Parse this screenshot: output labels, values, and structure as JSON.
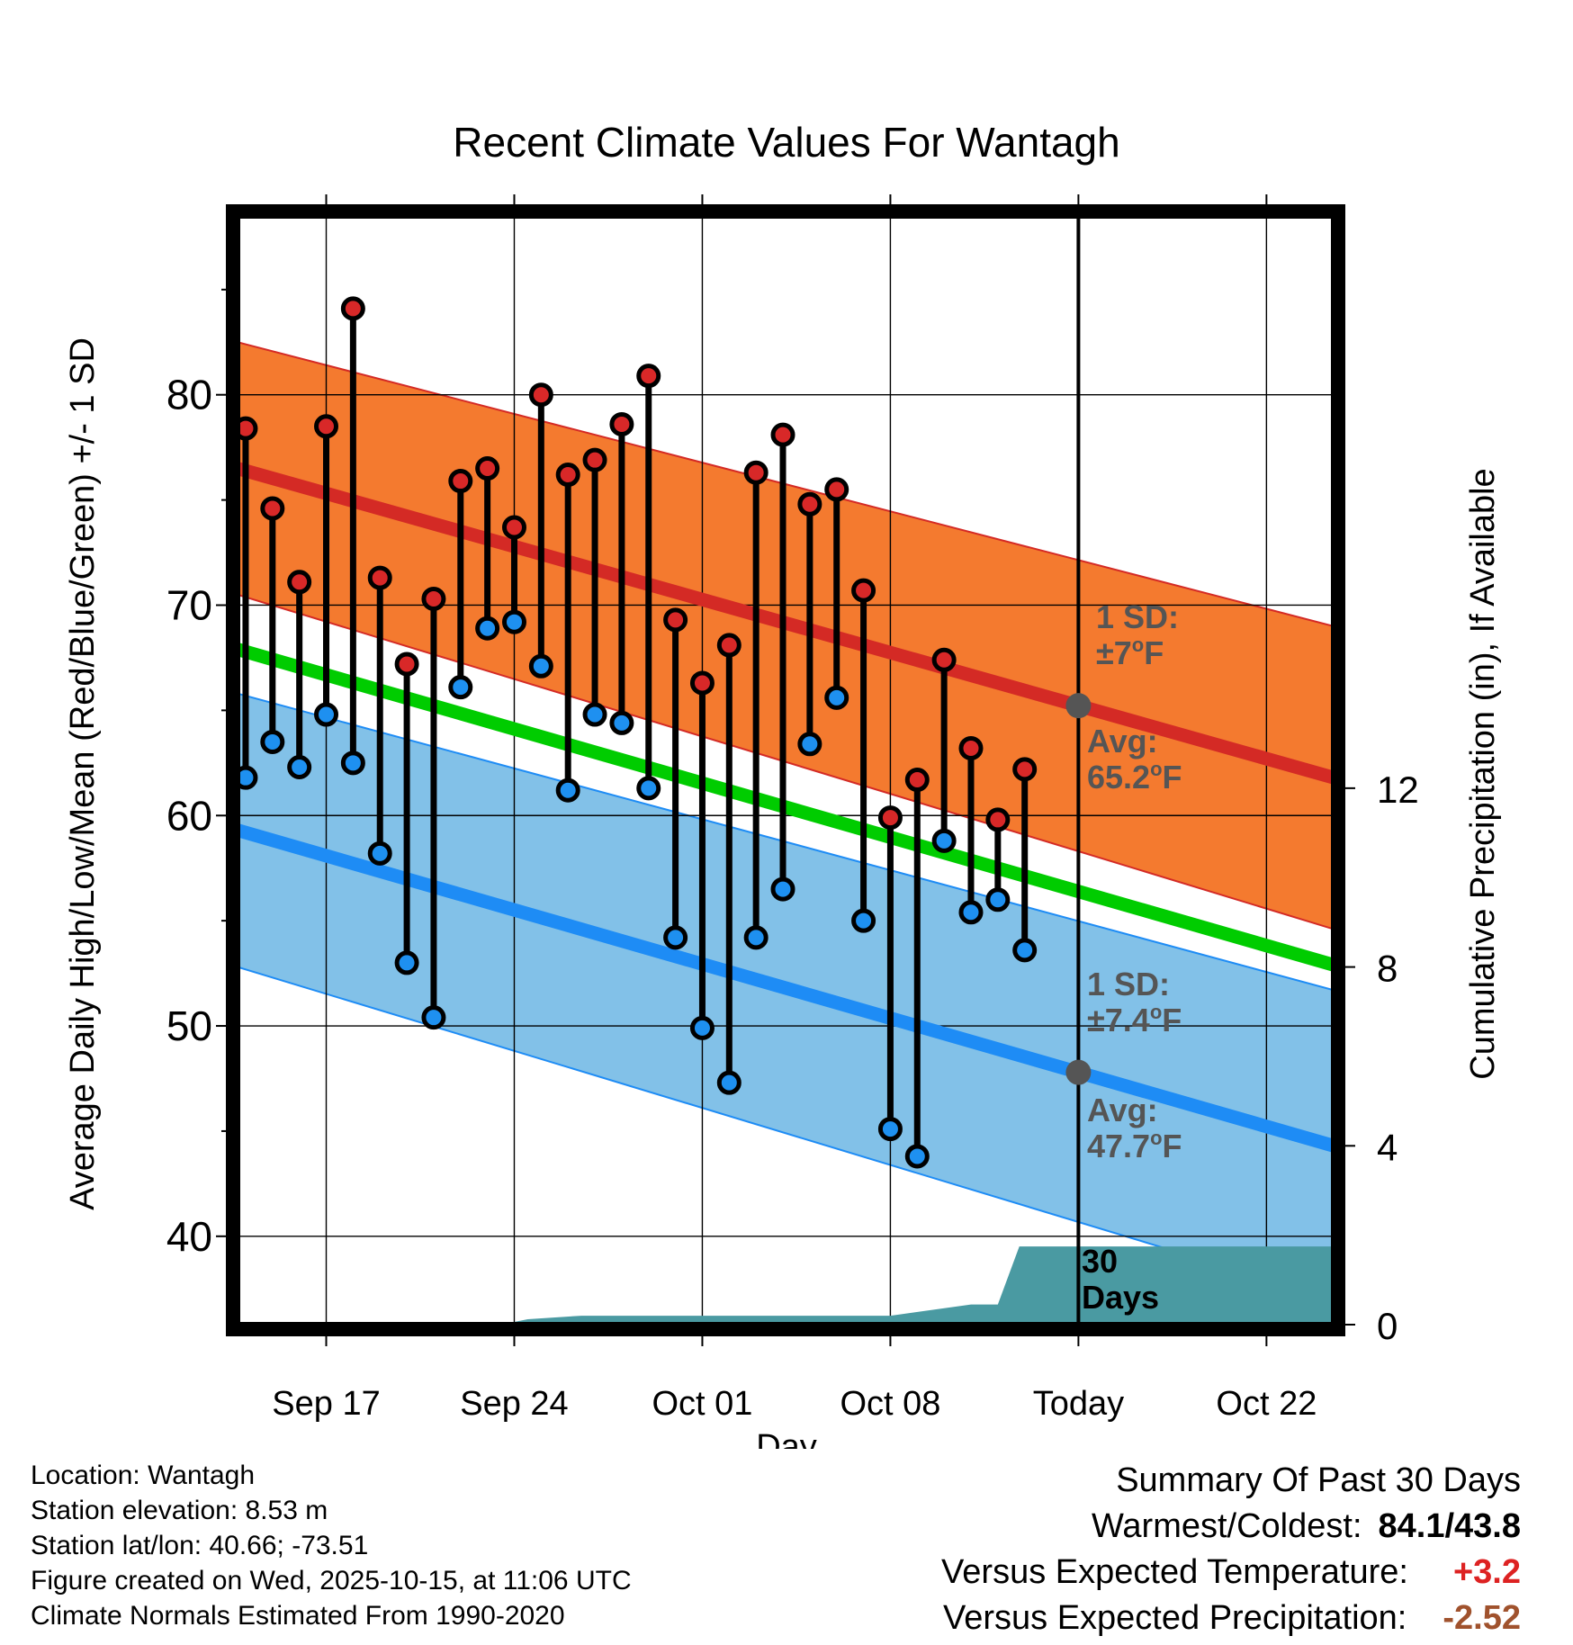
{
  "chart_data": {
    "type": "line",
    "title": "Recent Climate Values For Wantagh",
    "xlabel": "Day",
    "ylabel": "Average Daily High/Low/Mean (Red/Blue/Green) +/- 1 SD",
    "y2label": "Cumulative Precipitation (in), If Available",
    "x_tick_labels": [
      "Sep 17",
      "Sep 24",
      "Oct 01",
      "Oct 08",
      "Today",
      "Oct 22"
    ],
    "x_tick_days": [
      3,
      10,
      17,
      24,
      31,
      38
    ],
    "xlim": [
      -0.3,
      40.5
    ],
    "ylim": [
      35.8,
      88.5
    ],
    "y_ticks": [
      40,
      50,
      60,
      70,
      80
    ],
    "y2_ticks": [
      0,
      4,
      8,
      12
    ],
    "y2lim": [
      0,
      24.8
    ],
    "today_day": 31,
    "high_avg_line": {
      "start": 76.5,
      "end": 61.8
    },
    "high_sd_band": {
      "upper_start": 82.5,
      "upper_end": 69.0,
      "lower_start": 70.5,
      "lower_end": 54.6
    },
    "mean_line": {
      "start": 67.9,
      "end": 52.9
    },
    "low_avg_line": {
      "start": 59.3,
      "end": 44.3
    },
    "low_sd_band": {
      "upper_start": 65.8,
      "upper_end": 51.7,
      "lower_start": 52.8,
      "lower_end": 37.0
    },
    "days": [
      0,
      1,
      2,
      3,
      4,
      5,
      6,
      7,
      8,
      9,
      10,
      11,
      12,
      13,
      14,
      15,
      16,
      17,
      18,
      19,
      20,
      21,
      22,
      23,
      24,
      25,
      26,
      27,
      28,
      29
    ],
    "highs": [
      78.4,
      74.6,
      71.1,
      78.5,
      84.1,
      71.3,
      67.2,
      70.3,
      75.9,
      76.5,
      73.7,
      80.0,
      76.2,
      76.9,
      78.6,
      80.9,
      69.3,
      66.3,
      68.1,
      76.3,
      78.1,
      74.8,
      75.5,
      70.7,
      59.9,
      61.7,
      67.4,
      63.2,
      59.8,
      62.2
    ],
    "lows": [
      61.8,
      63.5,
      62.3,
      64.8,
      62.5,
      58.2,
      53.0,
      50.4,
      66.1,
      68.9,
      69.2,
      67.1,
      61.2,
      64.8,
      64.4,
      61.3,
      54.2,
      49.9,
      47.3,
      54.2,
      56.5,
      63.4,
      65.6,
      55.0,
      45.1,
      43.8,
      58.8,
      55.4,
      56.0,
      53.6
    ],
    "precip_cumulative": {
      "days": [
        -0.3,
        9.5,
        10.5,
        12.5,
        24.0,
        27.0,
        28.0,
        28.8,
        40.5
      ],
      "values": [
        0.0,
        0.0,
        0.12,
        0.2,
        0.2,
        0.45,
        0.45,
        1.75,
        1.75
      ]
    },
    "annotations": {
      "high_sd_label": "1 SD:",
      "high_sd_value": "±7",
      "high_avg_label": "Avg:",
      "high_avg_value": "65.2",
      "low_sd_label": "1 SD:",
      "low_sd_value": "±7.4",
      "low_avg_label": "Avg:",
      "low_avg_value": "47.7",
      "degree_symbol": "o",
      "unit": "F",
      "period_line1": "30",
      "period_line2": "Days"
    }
  },
  "colors": {
    "high_band": "#f47a2f",
    "high_avg": "#d42a25",
    "low_band": "#82c1e8",
    "low_avg": "#1e8cf5",
    "mean": "#00cc00",
    "precip": "#4a9aa2",
    "high_dot": "#d82828",
    "low_dot": "#1e90f0",
    "annotation": "#555555"
  },
  "footer": {
    "location": "Location: Wantagh",
    "elevation": "Station elevation: 8.53 m",
    "latlon": "Station lat/lon: 40.66; -73.51",
    "created": "Figure created on Wed, 2025-10-15, at 11:06 UTC",
    "normals": "Climate Normals Estimated From 1990-2020"
  },
  "summary": {
    "title": "Summary Of Past 30 Days",
    "warmest_coldest_label": "Warmest/Coldest:",
    "warmest_coldest_value": "84.1/43.8",
    "temp_label": "Versus Expected Temperature:",
    "temp_value": "+3.2",
    "precip_label": "Versus Expected Precipitation:",
    "precip_value": "-2.52"
  }
}
